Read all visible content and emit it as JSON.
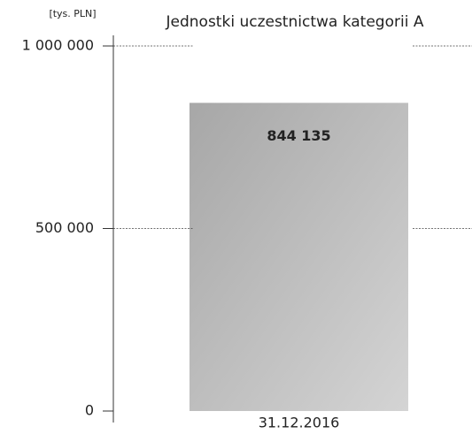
{
  "chart_data": {
    "type": "bar",
    "title": "Jednostki uczestnictwa kategorii A",
    "y_label": "[tys. PLN]",
    "categories": [
      "31.12.2016"
    ],
    "values": [
      844135
    ],
    "value_labels": [
      "844 135"
    ],
    "color": [
      "#a7a7a7",
      "#d4d4d4"
    ],
    "ylim": [
      0,
      1000000
    ],
    "yticks": [
      0,
      {
        "value": 500000,
        "label": "500 000"
      },
      {
        "value": 1000000,
        "label": "1 000 000"
      }
    ],
    "grid": true
  }
}
